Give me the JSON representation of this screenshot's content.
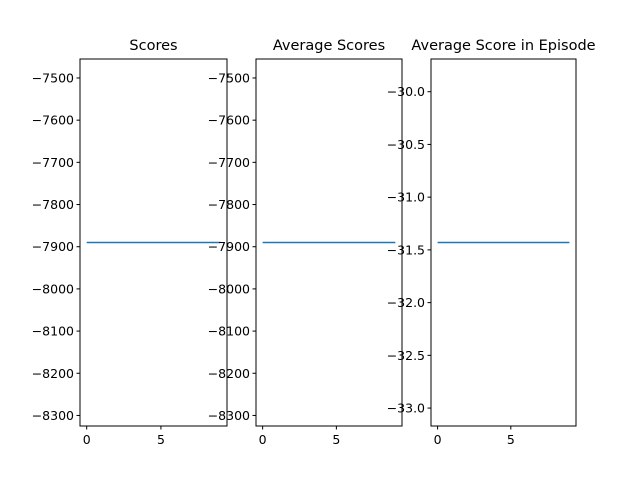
{
  "chart_data": [
    {
      "type": "line",
      "title": "Scores",
      "xlabel": "",
      "ylabel": "",
      "x": [
        0,
        9
      ],
      "series": [
        {
          "values": [
            -7890,
            -7890
          ],
          "color": "#1f77b4"
        }
      ],
      "xlim": [
        -0.45,
        9.45
      ],
      "ylim": [
        -8325,
        -7455
      ],
      "xticks": [
        0,
        5
      ],
      "xtick_labels": [
        "0",
        "5"
      ],
      "yticks": [
        -8300,
        -8200,
        -8100,
        -8000,
        -7900,
        -7800,
        -7700,
        -7600,
        -7500
      ],
      "ytick_labels": [
        "−8300",
        "−8200",
        "−8100",
        "−8000",
        "−7900",
        "−7800",
        "−7700",
        "−7600",
        "−7500"
      ],
      "grid": false
    },
    {
      "type": "line",
      "title": "Average Scores",
      "xlabel": "",
      "ylabel": "",
      "x": [
        0,
        9
      ],
      "series": [
        {
          "values": [
            -7890,
            -7890
          ],
          "color": "#1f77b4"
        }
      ],
      "xlim": [
        -0.45,
        9.45
      ],
      "ylim": [
        -8325,
        -7455
      ],
      "xticks": [
        0,
        5
      ],
      "xtick_labels": [
        "0",
        "5"
      ],
      "yticks": [
        -8300,
        -8200,
        -8100,
        -8000,
        -7900,
        -7800,
        -7700,
        -7600,
        -7500
      ],
      "ytick_labels": [
        "−8300",
        "−8200",
        "−8100",
        "−8000",
        "−7900",
        "−7800",
        "−7700",
        "−7600",
        "−7500"
      ],
      "grid": false
    },
    {
      "type": "line",
      "title": "Average Score in Episode",
      "xlabel": "",
      "ylabel": "",
      "x": [
        0,
        9
      ],
      "series": [
        {
          "values": [
            -31.43,
            -31.43
          ],
          "color": "#1f77b4"
        }
      ],
      "xlim": [
        -0.45,
        9.45
      ],
      "ylim": [
        -33.17,
        -29.69
      ],
      "xticks": [
        0,
        5
      ],
      "xtick_labels": [
        "0",
        "5"
      ],
      "yticks": [
        -33.0,
        -32.5,
        -32.0,
        -31.5,
        -31.0,
        -30.5,
        -30.0
      ],
      "ytick_labels": [
        "−33.0",
        "−32.5",
        "−32.0",
        "−31.5",
        "−31.0",
        "−30.5",
        "−30.0"
      ],
      "grid": false
    }
  ]
}
